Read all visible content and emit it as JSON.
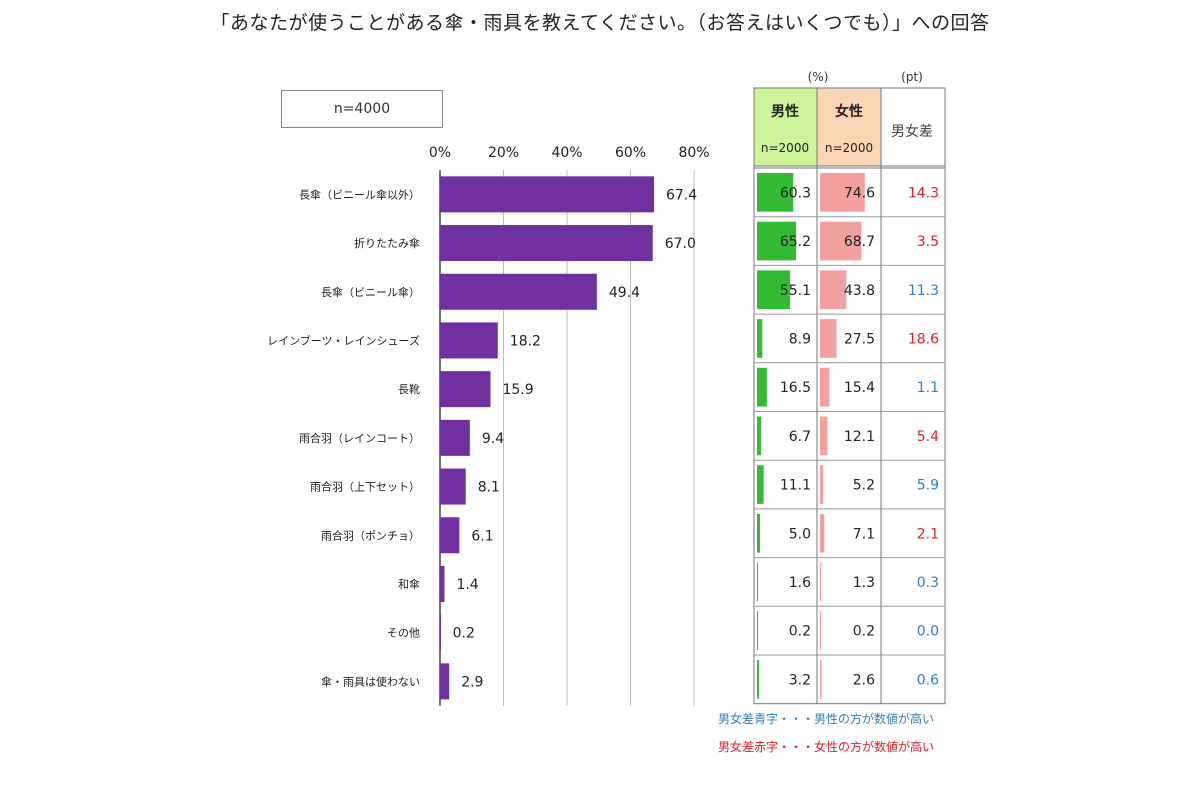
{
  "title": "「あなたが使うことがある傘・雨具を教えてください。（お答えはいくつでも）」への回答",
  "sample_label": "n=4000",
  "table": {
    "unit_pct": "(%)",
    "unit_pt": "(pt)",
    "male_header": "男性",
    "male_n": "n=2000",
    "female_header": "女性",
    "female_n": "n=2000",
    "diff_header": "男女差",
    "note_blue": "男女差青字・・・男性の方が数値が高い",
    "note_red": "男女差赤字・・・女性の方が数値が高い"
  },
  "colors": {
    "bar": "#7030a0",
    "male_bar": "#33bb33",
    "female_bar": "#f4a0a0",
    "male_header_bg": "#ccf59a",
    "female_header_bg": "#fcd5b4",
    "diff_blue": "#2f7fc1",
    "diff_red": "#e0202a"
  },
  "chart_data": {
    "type": "bar",
    "orientation": "horizontal",
    "xlim": [
      0,
      80
    ],
    "ticks": [
      "0%",
      "20%",
      "40%",
      "60%",
      "80%"
    ],
    "tick_values": [
      0,
      20,
      40,
      60,
      80
    ],
    "categories": [
      "長傘（ビニール傘以外）",
      "折りたたみ傘",
      "長傘（ビニール傘）",
      "レインブーツ・レインシューズ",
      "長靴",
      "雨合羽（レインコート）",
      "雨合羽（上下セット）",
      "雨合羽（ポンチョ）",
      "和傘",
      "その他",
      "傘・雨具は使わない"
    ],
    "values": [
      67.4,
      67.0,
      49.4,
      18.2,
      15.9,
      9.4,
      8.1,
      6.1,
      1.4,
      0.2,
      2.9
    ],
    "value_labels": [
      "67.4",
      "67.0",
      "49.4",
      "18.2",
      "15.9",
      "9.4",
      "8.1",
      "6.1",
      "1.4",
      "0.2",
      "2.9"
    ],
    "grid": true,
    "male": [
      60.3,
      65.2,
      55.1,
      8.9,
      16.5,
      6.7,
      11.1,
      5.0,
      1.6,
      0.2,
      3.2
    ],
    "male_labels": [
      "60.3",
      "65.2",
      "55.1",
      "8.9",
      "16.5",
      "6.7",
      "11.1",
      "5.0",
      "1.6",
      "0.2",
      "3.2"
    ],
    "female": [
      74.6,
      68.7,
      43.8,
      27.5,
      15.4,
      12.1,
      5.2,
      7.1,
      1.3,
      0.2,
      2.6
    ],
    "female_labels": [
      "74.6",
      "68.7",
      "43.8",
      "27.5",
      "15.4",
      "12.1",
      "5.2",
      "7.1",
      "1.3",
      "0.2",
      "2.6"
    ],
    "diff_labels": [
      "14.3",
      "3.5",
      "11.3",
      "18.6",
      "1.1",
      "5.4",
      "5.9",
      "2.1",
      "0.3",
      "0.0",
      "0.6"
    ],
    "diff_color": [
      "red",
      "red",
      "blue",
      "red",
      "blue",
      "red",
      "blue",
      "red",
      "blue",
      "blue",
      "blue"
    ]
  }
}
